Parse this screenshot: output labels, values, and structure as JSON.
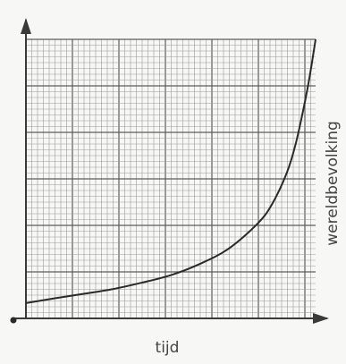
{
  "chart_data": {
    "type": "line",
    "title": "",
    "xlabel": "tijd",
    "ylabel": "wereldbevolking",
    "grid": true,
    "ticks": false,
    "xlim": [
      0,
      10
    ],
    "ylim": [
      0,
      10
    ],
    "series": [
      {
        "x": [
          0,
          1,
          2,
          3,
          4,
          5,
          6,
          7,
          8,
          8.5,
          9,
          9.3,
          9.6,
          9.8,
          10
        ],
        "values": [
          0.55,
          0.72,
          0.88,
          1.05,
          1.28,
          1.55,
          1.95,
          2.5,
          3.4,
          4.1,
          5.2,
          6.2,
          7.6,
          8.7,
          10
        ]
      }
    ]
  },
  "colors": {
    "background": "#f7f7f5",
    "grid_major": "#5c5c5c",
    "grid_fine": "#9a9a9a",
    "curve": "#2a2a2a",
    "axis": "#3a3a3a"
  }
}
